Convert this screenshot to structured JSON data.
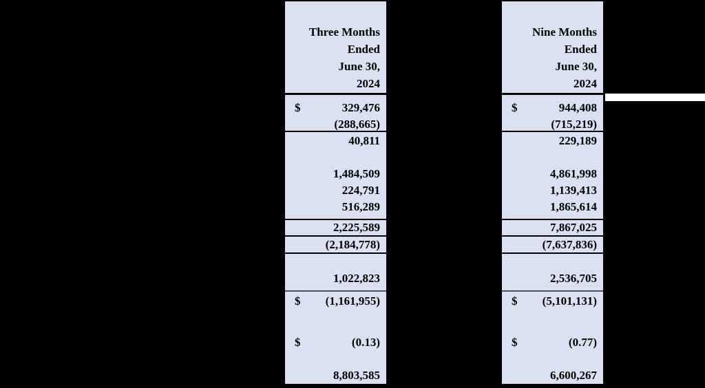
{
  "page": {
    "background_color": "#000000"
  },
  "table": {
    "shade_color": "#dbe1f3",
    "text_color": "#000000",
    "rule_color": "#000000",
    "subtotal_rule_color": "#4d5259",
    "highlight_bar_color": "#ffffff",
    "columns": [
      {
        "id": "three-months",
        "header_lines": [
          "Three Months",
          "Ended",
          "June 30,",
          "2024"
        ],
        "rows": [
          {
            "currency": "$",
            "value": "329,476"
          },
          {
            "currency": "",
            "value": "(288,665)"
          },
          {
            "currency": "",
            "value": "40,811"
          },
          {
            "currency": "",
            "value": "1,484,509"
          },
          {
            "currency": "",
            "value": "224,791"
          },
          {
            "currency": "",
            "value": "516,289"
          },
          {
            "currency": "",
            "value": "2,225,589"
          },
          {
            "currency": "",
            "value": "(2,184,778)"
          },
          {
            "currency": "",
            "value": "1,022,823"
          },
          {
            "currency": "$",
            "value": "(1,161,955)"
          },
          {
            "currency": "$",
            "value": "(0.13)"
          },
          {
            "currency": "",
            "value": "8,803,585"
          }
        ]
      },
      {
        "id": "nine-months",
        "header_lines": [
          "Nine Months",
          "Ended",
          "June 30,",
          "2024"
        ],
        "rows": [
          {
            "currency": "$",
            "value": "944,408"
          },
          {
            "currency": "",
            "value": "(715,219)"
          },
          {
            "currency": "",
            "value": "229,189"
          },
          {
            "currency": "",
            "value": "4,861,998"
          },
          {
            "currency": "",
            "value": "1,139,413"
          },
          {
            "currency": "",
            "value": "1,865,614"
          },
          {
            "currency": "",
            "value": "7,867,025"
          },
          {
            "currency": "",
            "value": "(7,637,836)"
          },
          {
            "currency": "",
            "value": "2,536,705"
          },
          {
            "currency": "$",
            "value": "(5,101,131)"
          },
          {
            "currency": "$",
            "value": "(0.77)"
          },
          {
            "currency": "",
            "value": "6,600,267"
          }
        ]
      }
    ]
  }
}
